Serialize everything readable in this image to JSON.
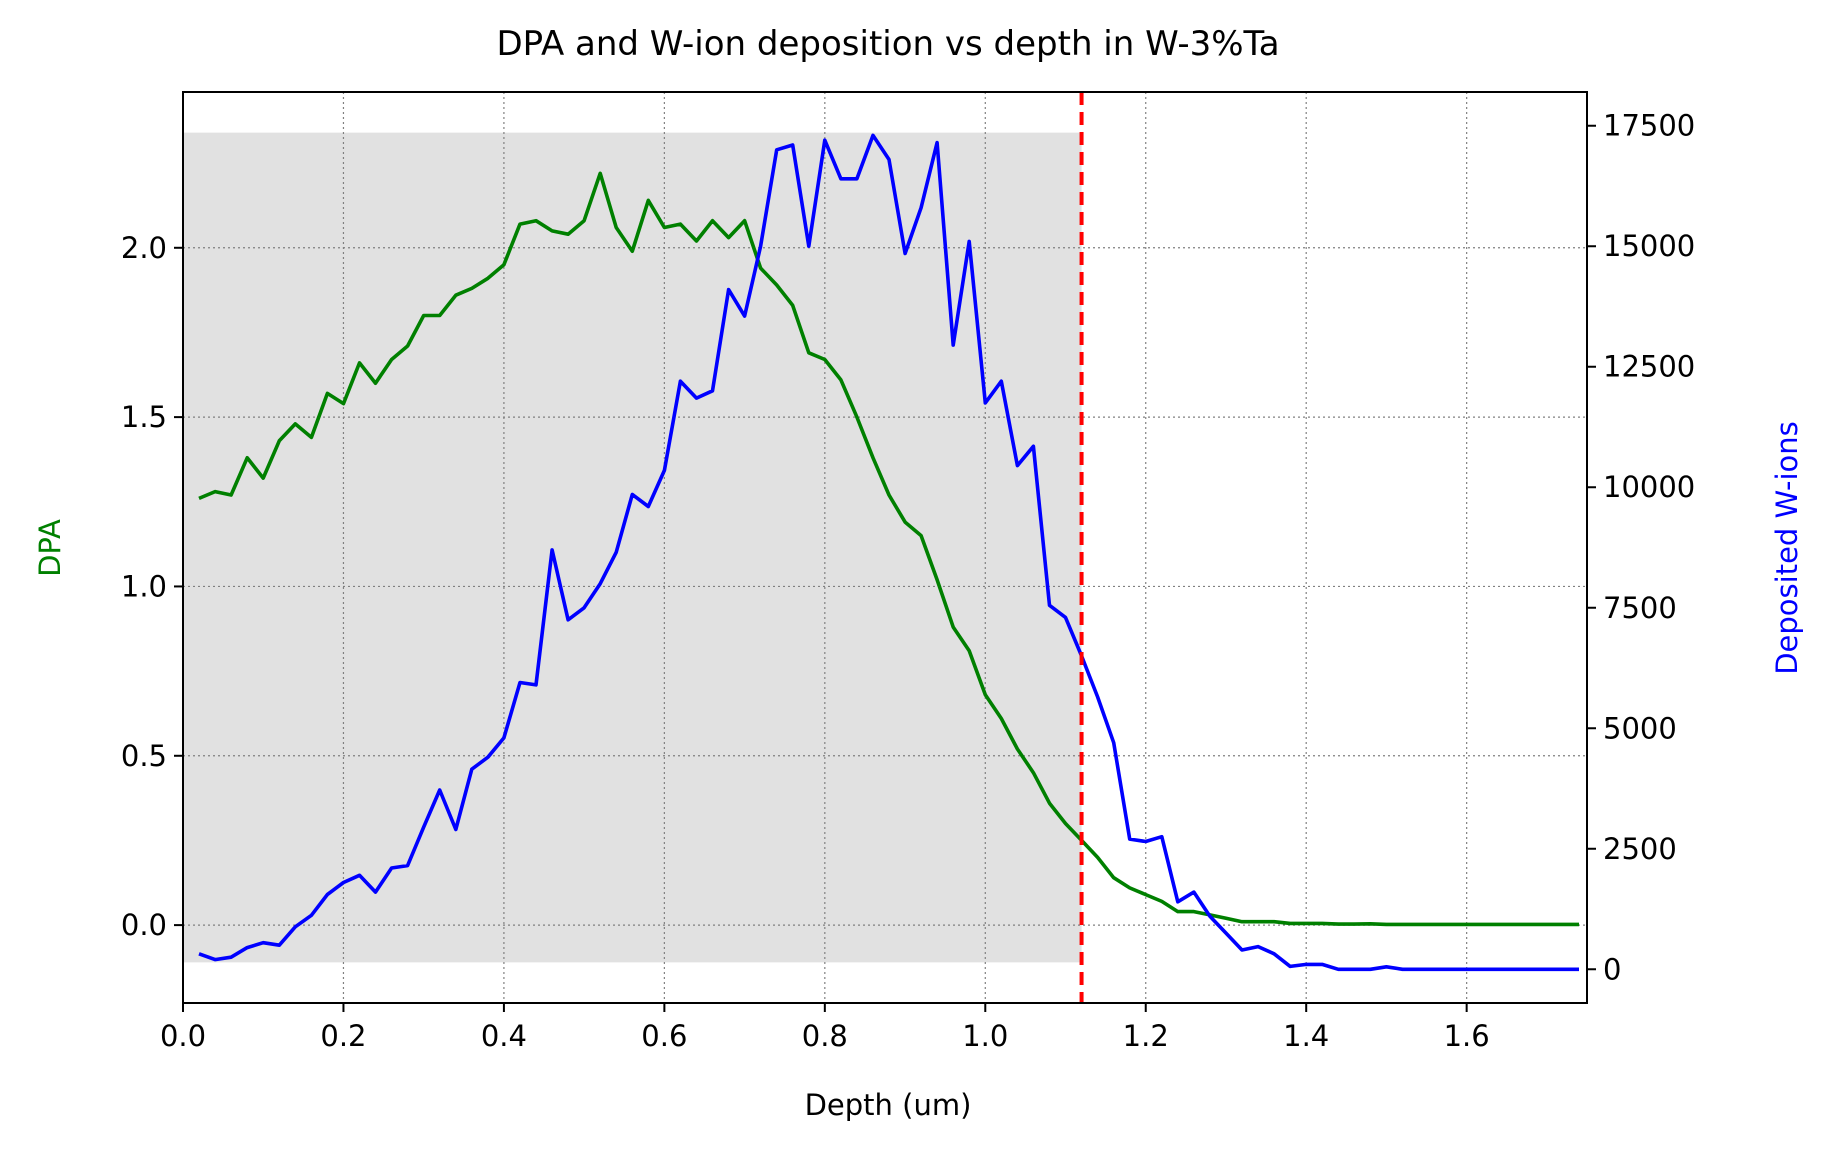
{
  "chart_data": {
    "type": "line",
    "title": "DPA and W-ion deposition vs depth in W-3%Ta",
    "xlabel": "Depth (um)",
    "ylabel": "DPA",
    "y2label": "Deposited W-ions",
    "xlim": [
      0.0,
      1.75
    ],
    "ylim": [
      -0.23,
      2.46
    ],
    "y2lim": [
      -700,
      18200
    ],
    "x_ticks": [
      "0.0",
      "0.2",
      "0.4",
      "0.6",
      "0.8",
      "1.0",
      "1.2",
      "1.4",
      "1.6"
    ],
    "x_tick_values": [
      0.0,
      0.2,
      0.4,
      0.6,
      0.8,
      1.0,
      1.2,
      1.4,
      1.6
    ],
    "y_ticks": [
      "0.0",
      "0.5",
      "1.0",
      "1.5",
      "2.0"
    ],
    "y_tick_values": [
      0.0,
      0.5,
      1.0,
      1.5,
      2.0
    ],
    "y2_ticks": [
      "0",
      "2500",
      "5000",
      "7500",
      "10000",
      "12500",
      "15000",
      "17500"
    ],
    "y2_tick_values": [
      0,
      2500,
      5000,
      7500,
      10000,
      12500,
      15000,
      17500
    ],
    "grid": true,
    "shaded_region": {
      "x": [
        0.0,
        1.12
      ],
      "y": [
        -0.11,
        2.34
      ],
      "color": "#e1e1e1"
    },
    "vline": {
      "x": 1.12,
      "color": "#ff0000",
      "style": "dashed"
    },
    "series": [
      {
        "axis": "left",
        "color": "#008000",
        "x": [
          0.02,
          0.04,
          0.06,
          0.08,
          0.1,
          0.12,
          0.14,
          0.16,
          0.18,
          0.2,
          0.22,
          0.24,
          0.26,
          0.28,
          0.3,
          0.32,
          0.34,
          0.36,
          0.38,
          0.4,
          0.42,
          0.44,
          0.46,
          0.48,
          0.5,
          0.52,
          0.54,
          0.56,
          0.58,
          0.6,
          0.62,
          0.64,
          0.66,
          0.68,
          0.7,
          0.72,
          0.74,
          0.76,
          0.78,
          0.8,
          0.82,
          0.84,
          0.86,
          0.88,
          0.9,
          0.92,
          0.94,
          0.96,
          0.98,
          1.0,
          1.02,
          1.04,
          1.06,
          1.08,
          1.1,
          1.12,
          1.14,
          1.16,
          1.18,
          1.2,
          1.22,
          1.24,
          1.26,
          1.28,
          1.3,
          1.32,
          1.34,
          1.36,
          1.38,
          1.4,
          1.42,
          1.44,
          1.46,
          1.48,
          1.5,
          1.52,
          1.54,
          1.56,
          1.58,
          1.6,
          1.62,
          1.64,
          1.66,
          1.68,
          1.7,
          1.72,
          1.74
        ],
        "values": [
          1.26,
          1.28,
          1.27,
          1.38,
          1.32,
          1.43,
          1.48,
          1.44,
          1.57,
          1.54,
          1.66,
          1.6,
          1.67,
          1.71,
          1.8,
          1.8,
          1.86,
          1.88,
          1.91,
          1.95,
          2.07,
          2.08,
          2.05,
          2.04,
          2.08,
          2.22,
          2.06,
          1.99,
          2.14,
          2.06,
          2.07,
          2.02,
          2.08,
          2.03,
          2.08,
          1.94,
          1.89,
          1.83,
          1.69,
          1.67,
          1.61,
          1.5,
          1.38,
          1.27,
          1.19,
          1.15,
          1.02,
          0.88,
          0.81,
          0.68,
          0.61,
          0.52,
          0.45,
          0.36,
          0.3,
          0.25,
          0.2,
          0.14,
          0.11,
          0.09,
          0.07,
          0.04,
          0.04,
          0.03,
          0.02,
          0.01,
          0.01,
          0.01,
          0.005,
          0.005,
          0.005,
          0.003,
          0.003,
          0.004,
          0.002,
          0.002,
          0.002,
          0.002,
          0.002,
          0.002,
          0.002,
          0.002,
          0.002,
          0.002,
          0.002,
          0.002,
          0.002
        ]
      },
      {
        "axis": "right",
        "color": "#0000ff",
        "x": [
          0.02,
          0.04,
          0.06,
          0.08,
          0.1,
          0.12,
          0.14,
          0.16,
          0.18,
          0.2,
          0.22,
          0.24,
          0.26,
          0.28,
          0.3,
          0.32,
          0.34,
          0.36,
          0.38,
          0.4,
          0.42,
          0.44,
          0.46,
          0.48,
          0.5,
          0.52,
          0.54,
          0.56,
          0.58,
          0.6,
          0.62,
          0.64,
          0.66,
          0.68,
          0.7,
          0.72,
          0.74,
          0.76,
          0.78,
          0.8,
          0.82,
          0.84,
          0.86,
          0.88,
          0.9,
          0.92,
          0.94,
          0.96,
          0.98,
          1.0,
          1.02,
          1.04,
          1.06,
          1.08,
          1.1,
          1.12,
          1.14,
          1.16,
          1.18,
          1.2,
          1.22,
          1.24,
          1.26,
          1.28,
          1.3,
          1.32,
          1.34,
          1.36,
          1.38,
          1.4,
          1.42,
          1.44,
          1.46,
          1.48,
          1.5,
          1.52,
          1.54,
          1.56,
          1.58,
          1.6,
          1.62,
          1.64,
          1.66,
          1.68,
          1.7,
          1.72,
          1.74
        ],
        "values": [
          320,
          200,
          250,
          450,
          550,
          500,
          880,
          1120,
          1550,
          1800,
          1950,
          1600,
          2100,
          2150,
          2950,
          3720,
          2900,
          4150,
          4400,
          4800,
          5950,
          5900,
          8700,
          7250,
          7500,
          8000,
          8650,
          9850,
          9600,
          10350,
          12200,
          11850,
          12000,
          14100,
          13550,
          15000,
          17000,
          17100,
          15000,
          17200,
          16400,
          16400,
          17300,
          16800,
          14850,
          15800,
          17150,
          12950,
          15100,
          11750,
          12200,
          10450,
          10850,
          7550,
          7300,
          6500,
          5650,
          4700,
          2700,
          2650,
          2750,
          1400,
          1600,
          1100,
          750,
          400,
          470,
          320,
          60,
          100,
          100,
          0,
          0,
          0,
          50,
          0,
          0,
          0,
          0,
          0,
          0,
          0,
          0,
          0,
          0,
          0,
          0
        ]
      }
    ]
  }
}
